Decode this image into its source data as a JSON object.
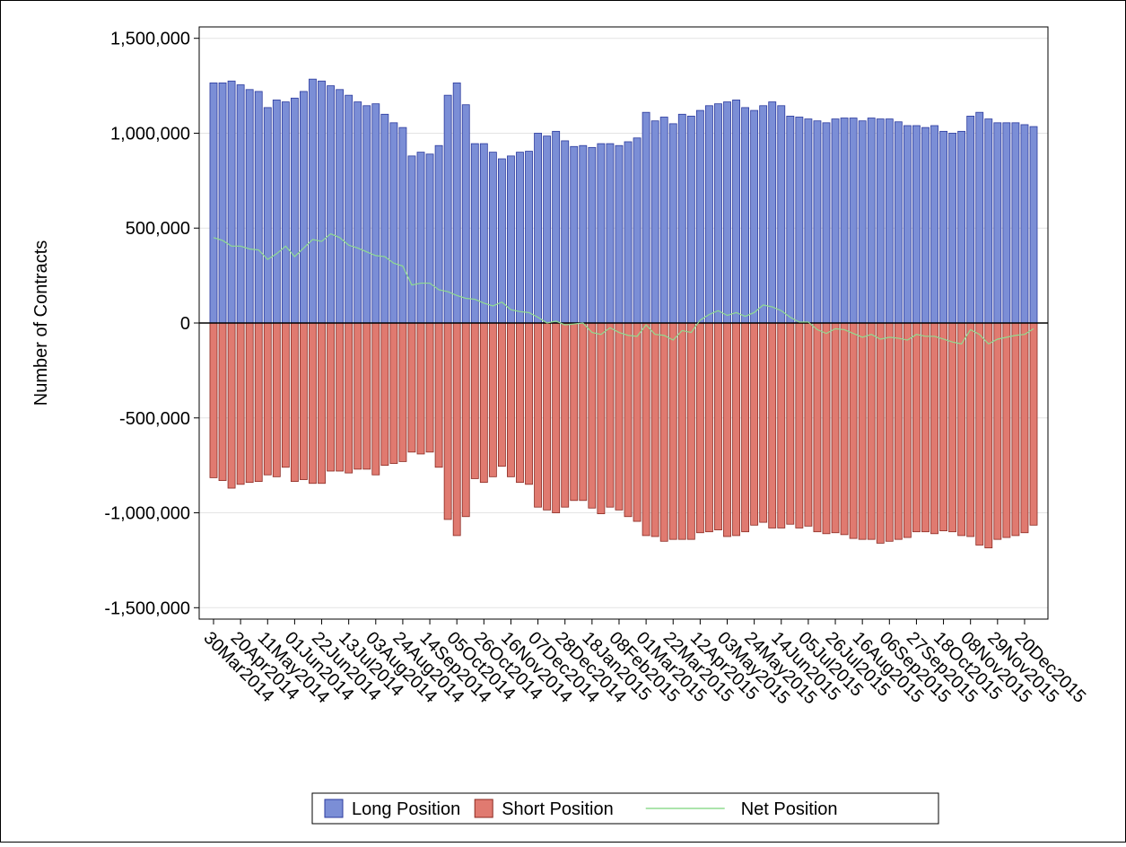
{
  "chart_data": {
    "type": "bar",
    "y_label": "Number of Contracts",
    "categories": [
      "30Mar2014",
      null,
      null,
      "20Apr2014",
      null,
      null,
      "11May2014",
      null,
      null,
      "01Jun2014",
      null,
      null,
      "22Jun2014",
      null,
      null,
      "13Jul2014",
      null,
      null,
      "03Aug2014",
      null,
      null,
      "24Aug2014",
      null,
      null,
      "14Sep2014",
      null,
      null,
      "05Oct2014",
      null,
      null,
      "26Oct2014",
      null,
      null,
      "16Nov2014",
      null,
      null,
      "07Dec2014",
      null,
      null,
      "28Dec2014",
      null,
      null,
      "18Jan2015",
      null,
      null,
      "08Feb2015",
      null,
      null,
      "01Mar2015",
      null,
      null,
      "22Mar2015",
      null,
      null,
      "12Apr2015",
      null,
      null,
      "03May2015",
      null,
      null,
      "24May2015",
      null,
      null,
      "14Jun2015",
      null,
      null,
      "05Jul2015",
      null,
      null,
      "26Jul2015",
      null,
      null,
      "16Aug2015",
      null,
      null,
      "06Sep2015",
      null,
      null,
      "27Sep2015",
      null,
      null,
      "18Oct2015",
      null,
      null,
      "08Nov2015",
      null,
      null,
      "29Nov2015",
      null,
      null,
      "20Dec2015",
      null
    ],
    "series": [
      {
        "name": "Long Position",
        "type": "bar",
        "color": "#7b8ed6",
        "stroke": "#2b3a9e",
        "values": [
          1265000,
          1265000,
          1275000,
          1255000,
          1230000,
          1220000,
          1135000,
          1175000,
          1165000,
          1185000,
          1220000,
          1285000,
          1275000,
          1250000,
          1230000,
          1200000,
          1165000,
          1145000,
          1155000,
          1100000,
          1055000,
          1030000,
          880000,
          900000,
          890000,
          935000,
          1200000,
          1265000,
          1150000,
          945000,
          945000,
          900000,
          865000,
          880000,
          900000,
          905000,
          1000000,
          985000,
          1010000,
          960000,
          930000,
          935000,
          925000,
          945000,
          945000,
          935000,
          955000,
          975000,
          1110000,
          1065000,
          1085000,
          1050000,
          1100000,
          1090000,
          1120000,
          1145000,
          1155000,
          1165000,
          1175000,
          1135000,
          1120000,
          1145000,
          1165000,
          1145000,
          1090000,
          1085000,
          1075000,
          1065000,
          1055000,
          1075000,
          1080000,
          1080000,
          1065000,
          1080000,
          1075000,
          1075000,
          1060000,
          1040000,
          1040000,
          1030000,
          1040000,
          1010000,
          1000000,
          1010000,
          1090000,
          1110000,
          1075000,
          1055000,
          1055000,
          1055000,
          1045000,
          1035000
        ]
      },
      {
        "name": "Short Position",
        "type": "bar",
        "color": "#e07a70",
        "stroke": "#8b2a22",
        "values": [
          -815000,
          -830000,
          -870000,
          -850000,
          -840000,
          -835000,
          -800000,
          -810000,
          -760000,
          -835000,
          -825000,
          -845000,
          -845000,
          -780000,
          -780000,
          -790000,
          -770000,
          -770000,
          -800000,
          -750000,
          -740000,
          -730000,
          -680000,
          -690000,
          -680000,
          -760000,
          -1035000,
          -1120000,
          -1020000,
          -820000,
          -840000,
          -810000,
          -755000,
          -810000,
          -840000,
          -850000,
          -970000,
          -985000,
          -1000000,
          -970000,
          -935000,
          -935000,
          -975000,
          -1005000,
          -970000,
          -985000,
          -1020000,
          -1045000,
          -1120000,
          -1125000,
          -1150000,
          -1140000,
          -1140000,
          -1140000,
          -1105000,
          -1100000,
          -1090000,
          -1125000,
          -1120000,
          -1100000,
          -1065000,
          -1050000,
          -1080000,
          -1080000,
          -1060000,
          -1080000,
          -1070000,
          -1100000,
          -1110000,
          -1105000,
          -1115000,
          -1135000,
          -1140000,
          -1140000,
          -1160000,
          -1150000,
          -1140000,
          -1130000,
          -1100000,
          -1100000,
          -1110000,
          -1095000,
          -1100000,
          -1120000,
          -1125000,
          -1170000,
          -1185000,
          -1140000,
          -1130000,
          -1120000,
          -1105000,
          -1065000
        ]
      },
      {
        "name": "Net Position",
        "type": "line",
        "color": "#90dc90",
        "values": [
          450000,
          435000,
          405000,
          405000,
          390000,
          385000,
          335000,
          365000,
          405000,
          350000,
          395000,
          440000,
          430000,
          470000,
          450000,
          410000,
          395000,
          375000,
          355000,
          350000,
          315000,
          300000,
          200000,
          210000,
          210000,
          175000,
          165000,
          145000,
          130000,
          125000,
          105000,
          90000,
          110000,
          70000,
          60000,
          55000,
          30000,
          0,
          10000,
          -10000,
          -5000,
          0,
          -50000,
          -60000,
          -25000,
          -50000,
          -65000,
          -70000,
          -10000,
          -60000,
          -65000,
          -90000,
          -40000,
          -50000,
          15000,
          45000,
          65000,
          40000,
          55000,
          35000,
          55000,
          95000,
          85000,
          65000,
          30000,
          5000,
          5000,
          -35000,
          -55000,
          -30000,
          -35000,
          -55000,
          -75000,
          -60000,
          -85000,
          -75000,
          -80000,
          -90000,
          -60000,
          -70000,
          -70000,
          -85000,
          -100000,
          -110000,
          -35000,
          -60000,
          -110000,
          -85000,
          -75000,
          -65000,
          -60000,
          -30000
        ]
      }
    ],
    "ylim": [
      -1560000,
      1560000
    ],
    "yticks": [
      {
        "value": -1500000,
        "label": "-1,500,000"
      },
      {
        "value": -1000000,
        "label": "-1,000,000"
      },
      {
        "value": -500000,
        "label": "-500,000"
      },
      0,
      {
        "value": 500000,
        "label": "500,000"
      },
      {
        "value": 1000000,
        "label": "1,000,000"
      },
      {
        "value": 1500000,
        "label": "1,500,000"
      }
    ],
    "grid": true,
    "legend": "bottom"
  }
}
